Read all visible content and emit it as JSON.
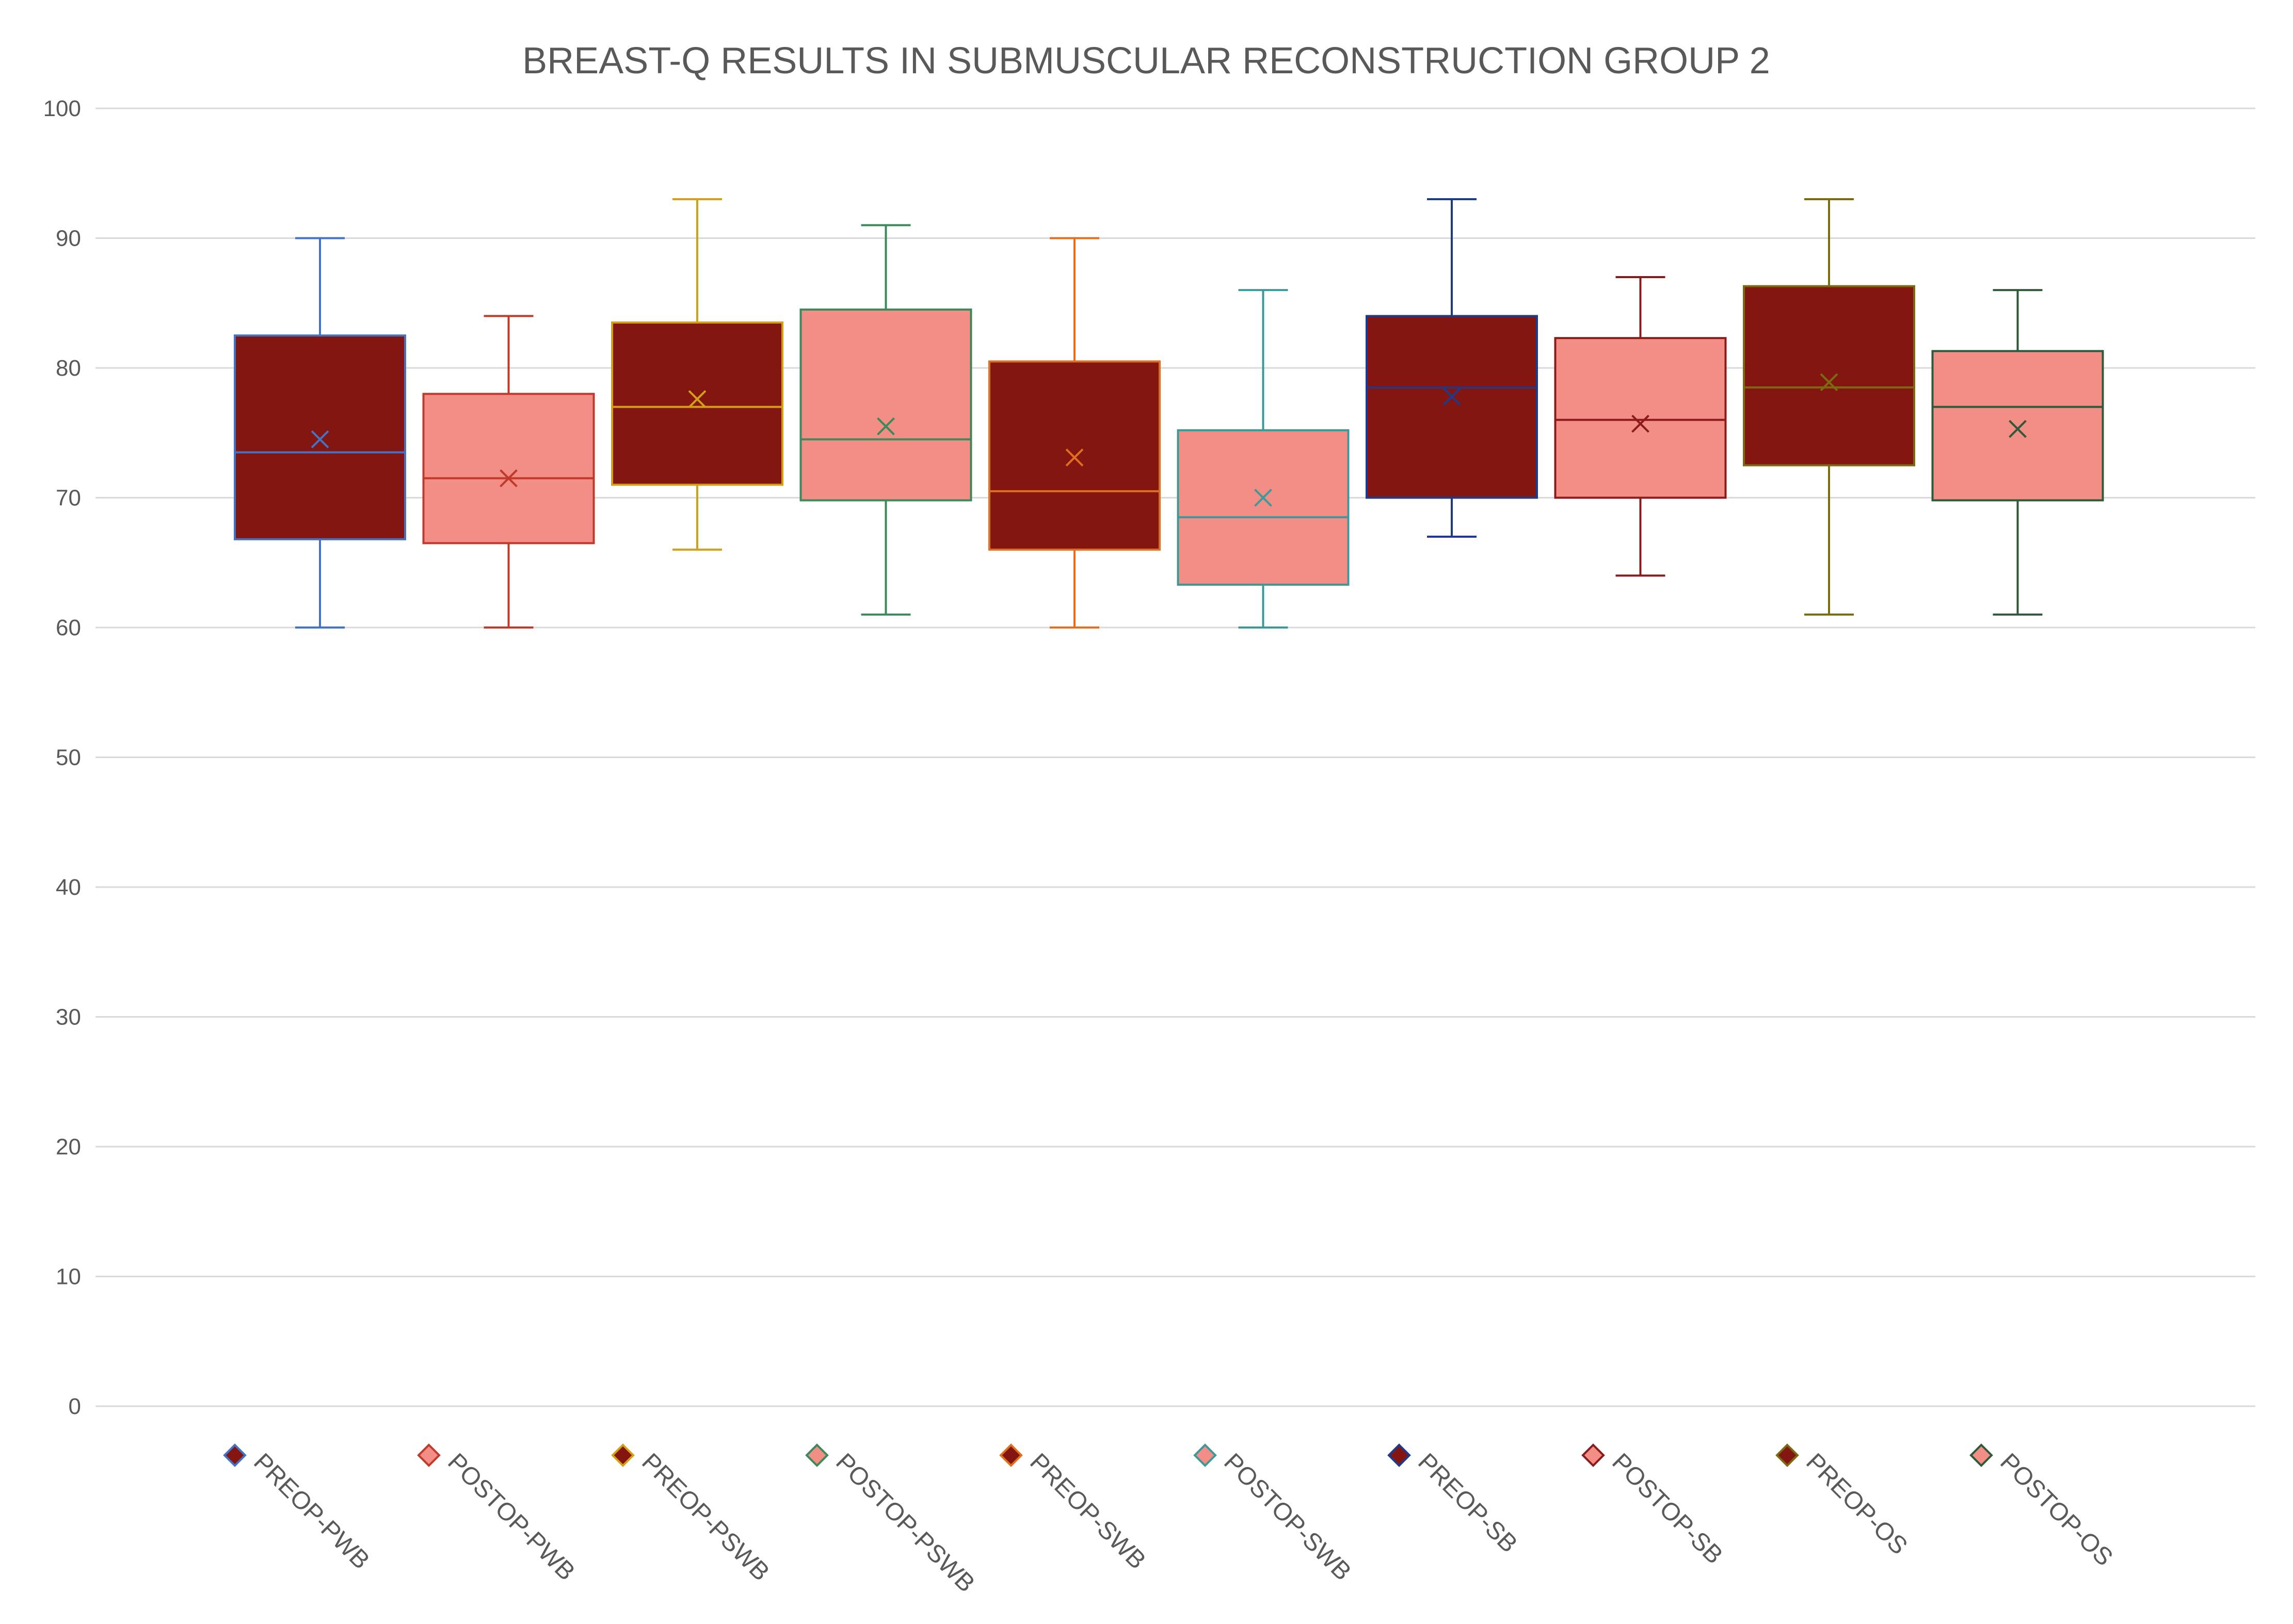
{
  "chart_data": {
    "type": "boxplot",
    "title": "BREAST-Q RESULTS IN SUBMUSCULAR RECONSTRUCTION GROUP 2",
    "xlabel": "",
    "ylabel": "",
    "ylim": [
      0,
      100
    ],
    "yticks": [
      0,
      10,
      20,
      30,
      40,
      50,
      60,
      70,
      80,
      90,
      100
    ],
    "grid": true,
    "legend_position": "bottom",
    "series": [
      {
        "name": "PREOP-PWB",
        "min": 60,
        "q1": 66.8,
        "median": 73.5,
        "q3": 82.5,
        "max": 90,
        "mean": 74.5,
        "fill": "#831610",
        "line": "#4472C4"
      },
      {
        "name": "POSTOP-PWB",
        "min": 60,
        "q1": 66.5,
        "median": 71.5,
        "q3": 78.0,
        "max": 84,
        "mean": 71.5,
        "fill": "#F28E85",
        "line": "#C0392B"
      },
      {
        "name": "PREOP-PSWB",
        "min": 66,
        "q1": 71.0,
        "median": 77.0,
        "q3": 83.5,
        "max": 93,
        "mean": 77.6,
        "fill": "#831610",
        "line": "#D4A017"
      },
      {
        "name": "POSTOP-PSWB",
        "min": 61,
        "q1": 69.8,
        "median": 74.5,
        "q3": 84.5,
        "max": 91,
        "mean": 75.5,
        "fill": "#F28E85",
        "line": "#3A8A5A"
      },
      {
        "name": "PREOP-SWB",
        "min": 60,
        "q1": 66.0,
        "median": 70.5,
        "q3": 80.5,
        "max": 90,
        "mean": 73.1,
        "fill": "#831610",
        "line": "#E07020"
      },
      {
        "name": "POSTOP-SWB",
        "min": 60,
        "q1": 63.3,
        "median": 68.5,
        "q3": 75.2,
        "max": 86,
        "mean": 70.0,
        "fill": "#F28E85",
        "line": "#3A9A9A"
      },
      {
        "name": "PREOP-SB",
        "min": 67,
        "q1": 70.0,
        "median": 78.5,
        "q3": 84.0,
        "max": 93,
        "mean": 77.8,
        "fill": "#831610",
        "line": "#1F3A8A"
      },
      {
        "name": "POSTOP-SB",
        "min": 64,
        "q1": 70.0,
        "median": 76.0,
        "q3": 82.3,
        "max": 87,
        "mean": 75.7,
        "fill": "#F28E85",
        "line": "#8B1A1A"
      },
      {
        "name": "PREOP-OS",
        "min": 61,
        "q1": 72.5,
        "median": 78.5,
        "q3": 86.3,
        "max": 93,
        "mean": 78.9,
        "fill": "#831610",
        "line": "#7A6A10"
      },
      {
        "name": "POSTOP-OS",
        "min": 61,
        "q1": 69.8,
        "median": 77.0,
        "q3": 81.3,
        "max": 86,
        "mean": 75.3,
        "fill": "#F28E85",
        "line": "#2E5A3A"
      }
    ]
  },
  "colors": {
    "gridline": "#D9D9D9",
    "axis_text": "#595959",
    "title_text": "#595959",
    "background": "#FFFFFF"
  }
}
